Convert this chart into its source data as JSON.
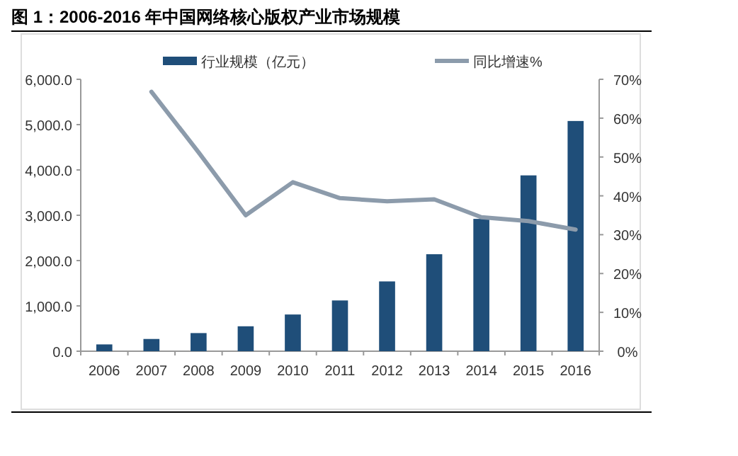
{
  "chart_data": {
    "type": "bar",
    "title": "图 1：2006-2016 年中国网络核心版权产业市场规模",
    "categories": [
      "2006",
      "2007",
      "2008",
      "2009",
      "2010",
      "2011",
      "2012",
      "2013",
      "2014",
      "2015",
      "2016"
    ],
    "series": [
      {
        "name": "行业规模（亿元）",
        "color": "#1f4e79",
        "values": [
          150,
          270,
          400,
          550,
          810,
          1120,
          1540,
          2140,
          2920,
          3880,
          5080
        ]
      },
      {
        "name": "同比增速%",
        "type": "line",
        "axis": "y2",
        "color": "#8c9bab",
        "values": [
          null,
          66.8,
          51.2,
          35.0,
          43.5,
          39.4,
          38.6,
          39.1,
          34.5,
          33.5,
          31.3
        ]
      }
    ],
    "ylim": [
      0,
      6000
    ],
    "yticks": [
      {
        "value": 0,
        "label": "0.0"
      },
      {
        "value": 1000,
        "label": "1,000.0"
      },
      {
        "value": 2000,
        "label": "2,000.0"
      },
      {
        "value": 3000,
        "label": "3,000.0"
      },
      {
        "value": 4000,
        "label": "4,000.0"
      },
      {
        "value": 5000,
        "label": "5,000.0"
      },
      {
        "value": 6000,
        "label": "6,000.0"
      }
    ],
    "y2lim": [
      0,
      70
    ],
    "y2ticks": [
      {
        "value": 0,
        "label": "0%"
      },
      {
        "value": 10,
        "label": "10%"
      },
      {
        "value": 20,
        "label": "20%"
      },
      {
        "value": 30,
        "label": "30%"
      },
      {
        "value": 40,
        "label": "40%"
      },
      {
        "value": 50,
        "label": "50%"
      },
      {
        "value": 60,
        "label": "60%"
      },
      {
        "value": 70,
        "label": "70%"
      }
    ],
    "legend": "top",
    "grid": false
  }
}
